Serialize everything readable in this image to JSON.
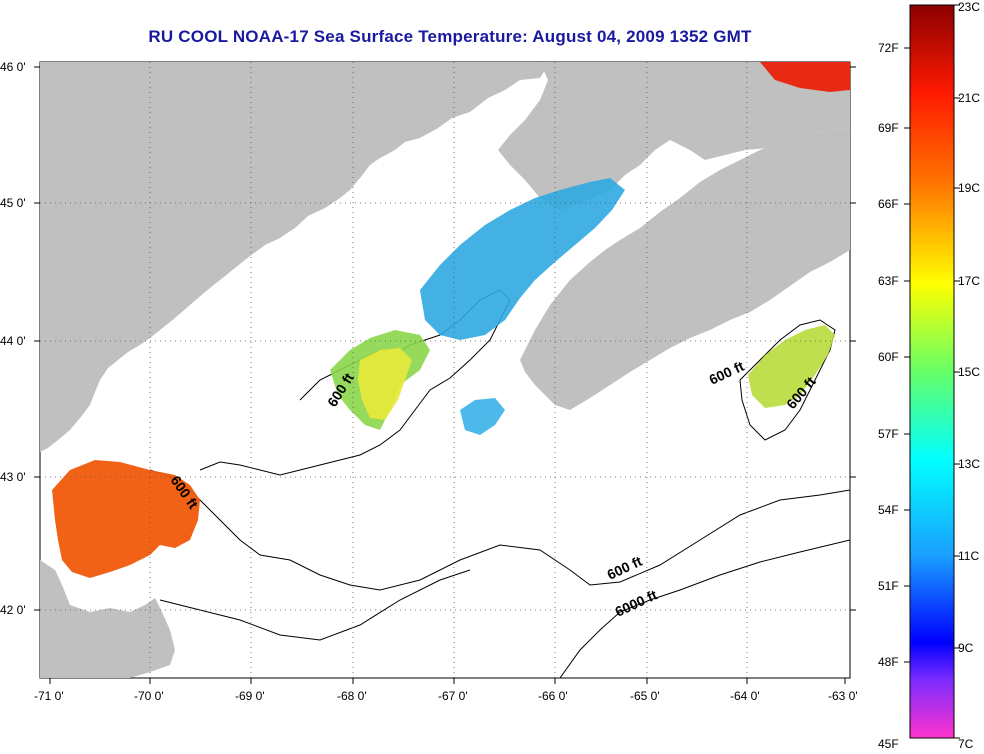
{
  "title": "RU COOL  NOAA-17  Sea Surface Temperature:  August 04, 2009 1352 GMT",
  "axes": {
    "lat_ticks": [
      "46 0'",
      "45 0'",
      "44 0'",
      "43 0'",
      "42 0'"
    ],
    "lon_ticks": [
      "-71 0'",
      "-70 0'",
      "-69 0'",
      "-68 0'",
      "-67 0'",
      "-66 0'",
      "-65 0'",
      "-64 0'",
      "-63 0'"
    ]
  },
  "contour_labels": [
    "600 ft",
    "600 ft",
    "600 ft",
    "600 ft",
    "600 ft",
    "6000 ft"
  ],
  "colorbar": {
    "fahrenheit": [
      "72F",
      "69F",
      "66F",
      "63F",
      "60F",
      "57F",
      "54F",
      "51F",
      "48F",
      "45F"
    ],
    "celsius": [
      "23C",
      "21C",
      "19C",
      "17C",
      "15C",
      "13C",
      "11C",
      "9C",
      "7C"
    ]
  },
  "colors": {
    "land": "#c0c0c0",
    "ocean": "#ffffff",
    "title": "#1a1aa0"
  },
  "chart_data": {
    "type": "heatmap",
    "title": "RU COOL  NOAA-17  Sea Surface Temperature:  August 04, 2009 1352 GMT",
    "x_range": [
      -71,
      -63
    ],
    "y_range": [
      41.5,
      46.1
    ],
    "units": [
      "F",
      "C"
    ],
    "color_range_c": [
      7,
      23
    ],
    "color_range_f": [
      45,
      73
    ],
    "grid": true
  }
}
